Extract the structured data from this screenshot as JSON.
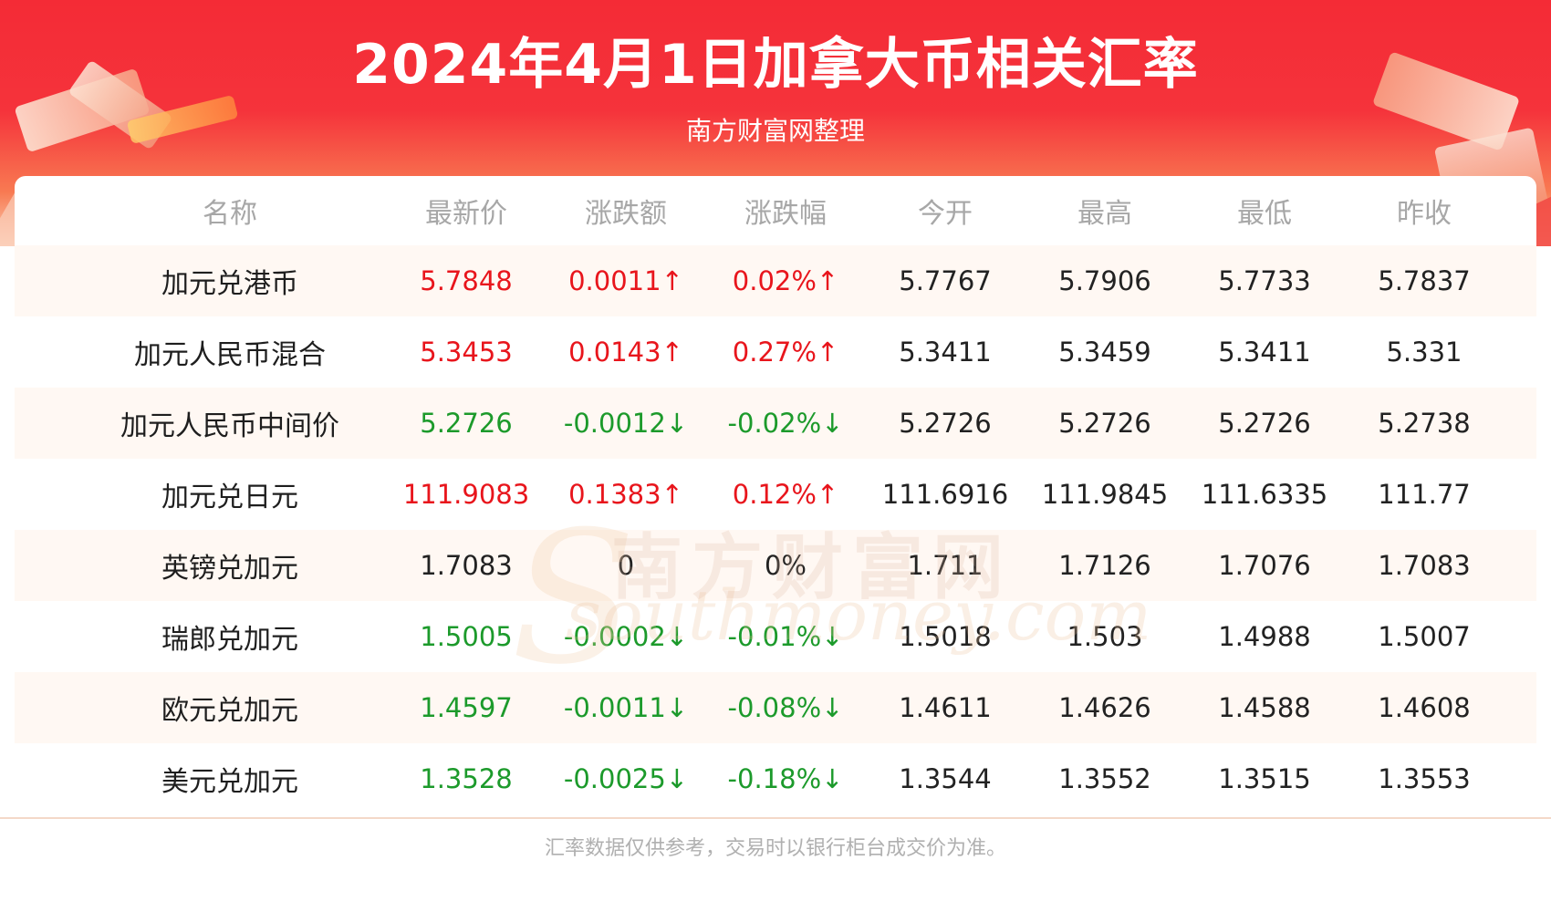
{
  "banner": {
    "title": "2024年4月1日加拿大币相关汇率",
    "subtitle": "南方财富网整理"
  },
  "table": {
    "headers": [
      "名称",
      "最新价",
      "涨跌额",
      "涨跌幅",
      "今开",
      "最高",
      "最低",
      "昨收"
    ],
    "rows": [
      {
        "name": "加元兑港币",
        "latest": "5.7848",
        "change": "0.0011↑",
        "change_pct": "0.02%↑",
        "open": "5.7767",
        "high": "5.7906",
        "low": "5.7733",
        "prev_close": "5.7837",
        "trend": "up"
      },
      {
        "name": "加元人民币混合",
        "latest": "5.3453",
        "change": "0.0143↑",
        "change_pct": "0.27%↑",
        "open": "5.3411",
        "high": "5.3459",
        "low": "5.3411",
        "prev_close": "5.331",
        "trend": "up"
      },
      {
        "name": "加元人民币中间价",
        "latest": "5.2726",
        "change": "-0.0012↓",
        "change_pct": "-0.02%↓",
        "open": "5.2726",
        "high": "5.2726",
        "low": "5.2726",
        "prev_close": "5.2738",
        "trend": "down"
      },
      {
        "name": "加元兑日元",
        "latest": "111.9083",
        "change": "0.1383↑",
        "change_pct": "0.12%↑",
        "open": "111.6916",
        "high": "111.9845",
        "low": "111.6335",
        "prev_close": "111.77",
        "trend": "up"
      },
      {
        "name": "英镑兑加元",
        "latest": "1.7083",
        "change": "0",
        "change_pct": "0%",
        "open": "1.711",
        "high": "1.7126",
        "low": "1.7076",
        "prev_close": "1.7083",
        "trend": "flat"
      },
      {
        "name": "瑞郎兑加元",
        "latest": "1.5005",
        "change": "-0.0002↓",
        "change_pct": "-0.01%↓",
        "open": "1.5018",
        "high": "1.503",
        "low": "1.4988",
        "prev_close": "1.5007",
        "trend": "down"
      },
      {
        "name": "欧元兑加元",
        "latest": "1.4597",
        "change": "-0.0011↓",
        "change_pct": "-0.08%↓",
        "open": "1.4611",
        "high": "1.4626",
        "low": "1.4588",
        "prev_close": "1.4608",
        "trend": "down"
      },
      {
        "name": "美元兑加元",
        "latest": "1.3528",
        "change": "-0.0025↓",
        "change_pct": "-0.18%↓",
        "open": "1.3544",
        "high": "1.3552",
        "low": "1.3515",
        "prev_close": "1.3553",
        "trend": "down"
      }
    ]
  },
  "watermark": {
    "cn": "南方财富网",
    "en": "southmoney.com"
  },
  "footer": {
    "note": "汇率数据仅供参考，交易时以银行柜台成交价为准。"
  },
  "colors": {
    "up": "#e8151c",
    "down": "#1c9a2b",
    "banner_red": "#f42b36"
  }
}
